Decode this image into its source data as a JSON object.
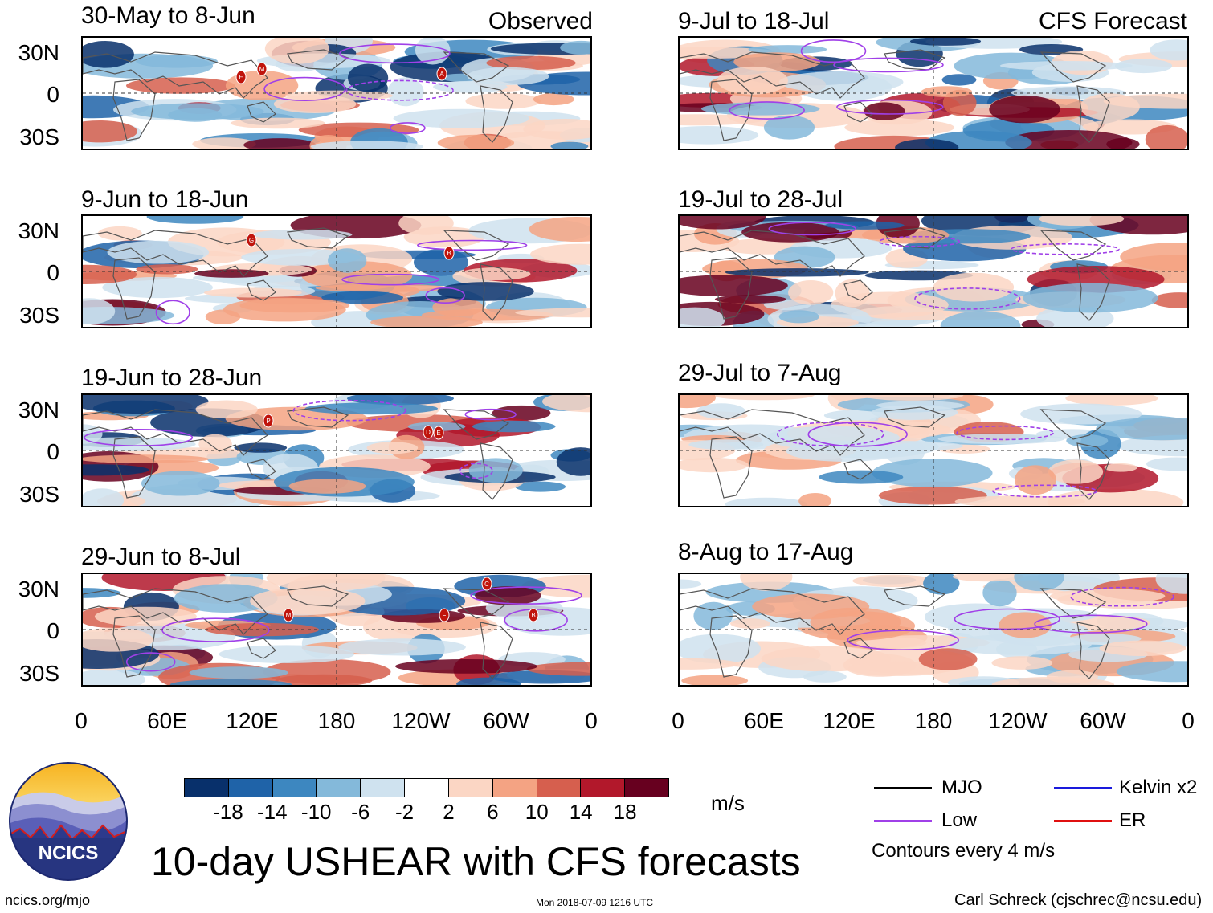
{
  "headers": {
    "observed": "Observed",
    "forecast": "CFS Forecast"
  },
  "observed_panels": [
    {
      "title": "30-May to 8-Jun",
      "storms": [
        "E",
        "M",
        "A"
      ]
    },
    {
      "title": "9-Jun to 18-Jun",
      "storms": [
        "G",
        "B"
      ]
    },
    {
      "title": "19-Jun to 28-Jun",
      "storms": [
        "P",
        "D",
        "E"
      ]
    },
    {
      "title": "29-Jun to 8-Jul",
      "storms": [
        "C",
        "M",
        "F",
        "B"
      ]
    }
  ],
  "forecast_panels": [
    {
      "title": "9-Jul to 18-Jul"
    },
    {
      "title": "19-Jul to 28-Jul"
    },
    {
      "title": "29-Jul to 7-Aug"
    },
    {
      "title": "8-Aug to 17-Aug"
    }
  ],
  "lat_labels": [
    "30N",
    "0",
    "30S"
  ],
  "lon_labels": [
    "0",
    "60E",
    "120E",
    "180",
    "120W",
    "60W",
    "0"
  ],
  "colorbar": {
    "colors": [
      "#08306b",
      "#1f63a8",
      "#3d87c0",
      "#84b9da",
      "#cfe2ef",
      "#ffffff",
      "#fbd6c4",
      "#f4a383",
      "#d65f4e",
      "#b2182b",
      "#67001f"
    ],
    "labels": [
      "-18",
      "-14",
      "-10",
      "-6",
      "-2",
      "2",
      "6",
      "10",
      "14",
      "18"
    ],
    "units": "m/s"
  },
  "legend": {
    "items": [
      {
        "name": "MJO",
        "color": "#000000"
      },
      {
        "name": "Kelvin x2",
        "color": "#1a1adc"
      },
      {
        "name": "Low",
        "color": "#a040e8"
      },
      {
        "name": "ER",
        "color": "#e01010"
      }
    ],
    "note": "Contours every 4 m/s"
  },
  "logo_text": "NCICS",
  "main_title": "10-day USHEAR with CFS forecasts",
  "footer": {
    "url": "ncics.org/mjo",
    "timestamp": "Mon 2018-07-09 1216 UTC",
    "credit": "Carl Schreck (cjschrec@ncsu.edu)"
  }
}
